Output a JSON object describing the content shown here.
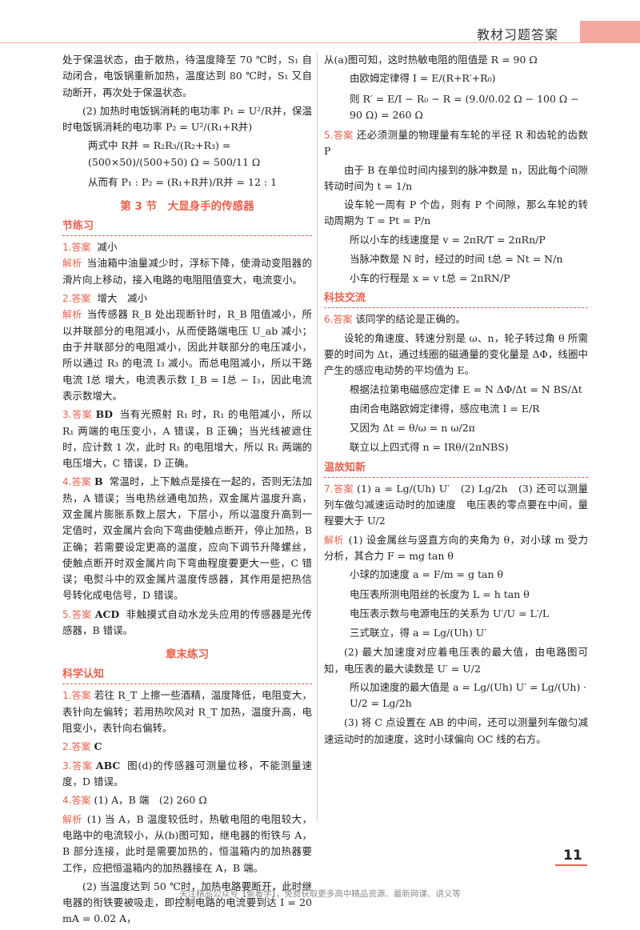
{
  "header": {
    "title": "教材习题答案"
  },
  "left": {
    "intro_lines": [
      "处于保温状态，由于散热，待温度降至 70 ℃时，S₁ 自动闭合，电饭锅重新加热，温度达到 80 ℃时，S₁ 又自动断开，再次处于保温状态。",
      "(2) 加热时电饭锅消耗的电功率 P₁ = U²/R并，保温时电饭锅消耗的电功率 P₂ = U²/(R₁+R并)",
      "两式中 R并 = R₂R₃/(R₂+R₃) = (500×50)/(500+50) Ω = 500/11 Ω",
      "从而有 P₁ : P₂ = (R₁+R并)/R并 = 12 : 1"
    ],
    "section3_title": "第 3 节　大显身手的传感器",
    "cat_jielianxi": "节练习",
    "items1": [
      {
        "num": "1.",
        "tag": "答案",
        "text": "减小",
        "analysis_label": "解析",
        "analysis": "当油箱中油量减少时，浮标下降，使滑动变阻器的滑片向上移动，接入电路的电阻阻值变大，电流变小。"
      },
      {
        "num": "2.",
        "tag": "答案",
        "text": "增大　减小",
        "analysis_label": "解析",
        "analysis": "当传感器 R_B 处出现断针时，R_B 阻值减小，所以并联部分的电阻减小，从而使路端电压 U_ab 减小；由于并联部分的电阻减小，因此并联部分的电压减小，所以通过 R₃ 的电流 I₃ 减小。而总电阻减小，所以干路电流 I总 增大，电流表示数 I_B = I总 − I₃，因此电流表示数增大。"
      },
      {
        "num": "3.",
        "tag": "答案",
        "bold": "BD",
        "text": "当有光照射 R₁ 时，R₁ 的电阻减小，所以 R₁ 两端的电压变小，A 错误，B 正确；当光线被遮住时，应计数 1 次，此时 R₁ 的电阻增大，所以 R₁ 两端的电压增大，C 错误，D 正确。"
      },
      {
        "num": "4.",
        "tag": "答案",
        "bold": "B",
        "text": "常温时，上下触点是接在一起的，否则无法加热，A 错误；当电热丝通电加热，双金属片温度升高，双金属片膨胀系数上层大，下层小，所以温度升高到一定值时，双金属片会向下弯曲使触点断开，停止加热，B 正确；若需要设定更高的温度，应向下调节升降螺丝，使触点断开时双金属片向下弯曲程度要更大一些，C 错误；电熨斗中的双金属片温度传感器，其作用是把热信号转化成电信号，D 错误。"
      },
      {
        "num": "5.",
        "tag": "答案",
        "bold": "ACD",
        "text": "非触摸式自动水龙头应用的传感器是光传感器，B 错误。"
      }
    ],
    "section_chapter_title": "章末练习",
    "cat_kexue": "科学认知",
    "items2": [
      {
        "num": "1.",
        "tag": "答案",
        "text": "若往 R_T 上擦一些酒精，温度降低，电阻变大，表针向左偏转；若用热吹风对 R_T 加热，温度升高，电阻变小，表针向右偏转。"
      },
      {
        "num": "2.",
        "tag": "答案",
        "bold": "C",
        "text": ""
      },
      {
        "num": "3.",
        "tag": "答案",
        "bold": "ABC",
        "text": "图(d)的传感器可测量位移，不能测量速度，D 错误。"
      },
      {
        "num": "4.",
        "tag": "答案",
        "text": "(1) A，B 端　(2) 260 Ω",
        "analysis_label": "解析",
        "analysis": "(1) 当 A，B 温度较低时，热敏电阻的电阻较大，电路中的电流较小，从(b)图可知，继电器的衔铁与 A，B 部分连接，此时是需要加热的，恒温箱内的加热器要工作，应把恒温箱内的加热器接在 A，B 端。",
        "extra": "(2) 当温度达到 50 ℃时，加热电路要断开，此时继电器的衔铁要被吸走，即控制电路的电流要到达 I = 20 mA = 0.02 A，"
      }
    ]
  },
  "right": {
    "lines_a": [
      "从(a)图可知，这时热敏电阻的阻值是 R = 90 Ω",
      "由欧姆定律得 I = E/(R+R′+R₀)",
      "则 R′ = E/I − R₀ − R = (9.0/0.02 Ω − 100 Ω − 90 Ω) = 260 Ω"
    ],
    "item5": {
      "num": "5.",
      "tag": "答案",
      "lines": [
        "还必须测量的物理量有车轮的半径 R 和齿轮的齿数 P",
        "由于 B 在单位时间内接到的脉冲数是 n，因此每个间隙转动时间为 t = 1/n",
        "设车轮一周有 P 个齿，则有 P 个间隙，那么车轮的转动周期为 T = Pt = P/n",
        "所以小车的线速度是 v = 2πR/T = 2πRn/P",
        "当脉冲数是 N 时，经过的时间 t总 = Nt = N/n",
        "小车的行程是 x = v t总 = 2πRN/P"
      ]
    },
    "cat_keji": "科技交流",
    "item6": {
      "num": "6.",
      "tag": "答案",
      "lines": [
        "该同学的结论是正确的。",
        "设轮的角速度、转速分别是 ω、n，轮子转过角 θ 所需要的时间为 Δt，通过线圈的磁通量的变化量是 ΔΦ，线圈中产生的感应电动势的平均值为 E。",
        "根据法拉第电磁感应定律 E = N ΔΦ/Δt = N BS/Δt",
        "由闭合电路欧姆定律得，感应电流 I = E/R",
        "又因为 Δt = θ/ω = n ω/2π",
        "联立以上四式得 n = IRθ/(2πNBS)"
      ]
    },
    "cat_wengu": "温故知新",
    "item7": {
      "num": "7.",
      "tag": "答案",
      "answer": "(1) a = Lg/(Uh) U′　(2) Lg/2h　(3) 还可以测量列车做匀减速运动时的加速度　电压表的零点要在中间，量程要大于 U/2",
      "analysis_label": "解析",
      "lines": [
        "(1) 设金属丝与竖直方向的夹角为 θ，对小球 m 受力分析，其合力 F = mg tan θ",
        "小球的加速度 a = F/m = g tan θ",
        "电压表所测电阻丝的长度为 L = h tan θ",
        "电压表示数与电源电压的关系为 U′/U = L′/L",
        "三式联立，得 a = Lg/(Uh) U′",
        "(2) 最大加速度对应着电压表的最大值，由电路图可知，电压表的最大读数是 U′ = U/2",
        "所以加速度的最大值是 a = Lg/(Uh) U′ = Lg/(Uh) · U/2 = Lg/2h",
        "(3) 将 C 点设置在 AB 的中间，还可以测量列车做匀减速运动时的加速度，这时小球偏向 OC 线的右方。"
      ]
    }
  },
  "page_number": "11",
  "footer": "关注精品公众号【偷着学】，免费获取更多高中精品资源、最新网课、讲义等"
}
